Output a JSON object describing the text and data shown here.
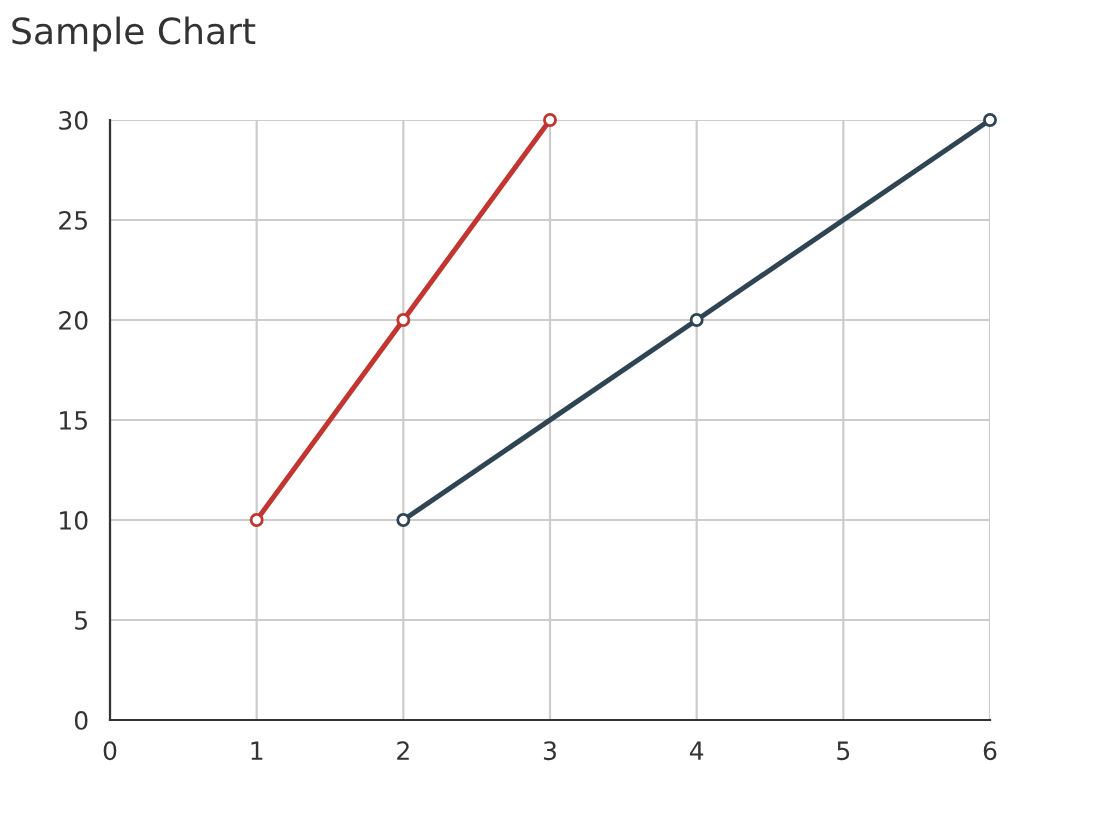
{
  "chart_data": {
    "type": "line",
    "title": "Sample Chart",
    "series": [
      {
        "color": "#c23531",
        "x": [
          1,
          2,
          3
        ],
        "values": [
          10,
          20,
          30
        ]
      },
      {
        "color": "#2f4554",
        "x": [
          2,
          4,
          6
        ],
        "values": [
          10,
          20,
          30
        ]
      }
    ],
    "xlim": [
      0,
      6
    ],
    "xticks": [
      0,
      1,
      2,
      3,
      4,
      5,
      6
    ],
    "ylim": [
      0,
      30
    ],
    "yticks": [
      0,
      5,
      10,
      15,
      20,
      25,
      30
    ],
    "grid": true,
    "marker": "circle",
    "line_style": "solid"
  }
}
